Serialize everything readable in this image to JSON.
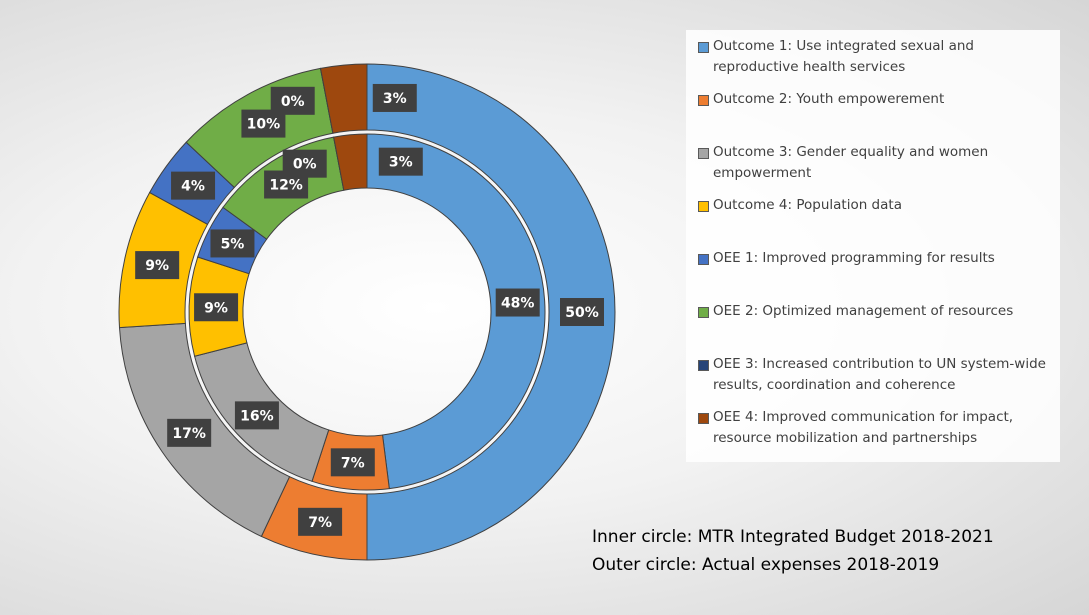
{
  "chart_data": {
    "type": "donut",
    "categories": [
      "Outcome 1: Use integrated sexual and reproductive health services",
      "Outcome 2: Youth empowerement",
      "Outcome 3: Gender equality and women empowerment",
      "Outcome 4: Population data",
      "OEE 1: Improved programming for results",
      "OEE 2: Optimized management of resources",
      "OEE 3: Increased contribution to UN system-wide results, coordination and coherence",
      "OEE 4: Improved communication for impact, resource mobilization and partnerships"
    ],
    "colors": [
      "#5b9bd5",
      "#ed7d31",
      "#a5a5a5",
      "#ffc000",
      "#4472c4",
      "#70ad47",
      "#264478",
      "#9e480e"
    ],
    "series": [
      {
        "values": [
          48,
          7,
          16,
          9,
          5,
          12,
          0,
          3
        ],
        "value_labels": [
          "48%",
          "7%",
          "16%",
          "9%",
          "5%",
          "12%",
          "0%",
          "3%"
        ]
      },
      {
        "values": [
          50,
          7,
          17,
          9,
          4,
          10,
          0,
          3
        ],
        "value_labels": [
          "50%",
          "7%",
          "17%",
          "9%",
          "4%",
          "10%",
          "0%",
          "3%"
        ]
      }
    ],
    "annotations": [
      "Inner circle: MTR Integrated Budget 2018-2021",
      "Outer circle: Actual expenses 2018-2019"
    ]
  }
}
